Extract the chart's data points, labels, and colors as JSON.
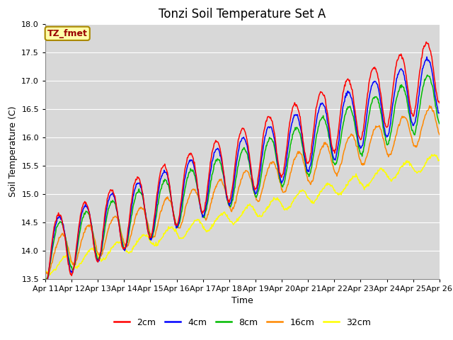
{
  "title": "Tonzi Soil Temperature Set A",
  "ylabel": "Soil Temperature (C)",
  "xlabel": "Time",
  "ylim": [
    13.5,
    18.0
  ],
  "yticks": [
    13.5,
    14.0,
    14.5,
    15.0,
    15.5,
    16.0,
    16.5,
    17.0,
    17.5,
    18.0
  ],
  "colors": {
    "2cm": "#ff0000",
    "4cm": "#0000ff",
    "8cm": "#00bb00",
    "16cm": "#ff8800",
    "32cm": "#ffff00"
  },
  "legend_label": "TZ_fmet",
  "legend_entries": [
    "2cm",
    "4cm",
    "8cm",
    "16cm",
    "32cm"
  ],
  "fig_bg_color": "#ffffff",
  "plot_bg_color": "#d8d8d8",
  "grid_color": "#ffffff",
  "title_fontsize": 12,
  "axis_fontsize": 9,
  "tick_fontsize": 8,
  "n_days": 15,
  "points_per_day": 48
}
